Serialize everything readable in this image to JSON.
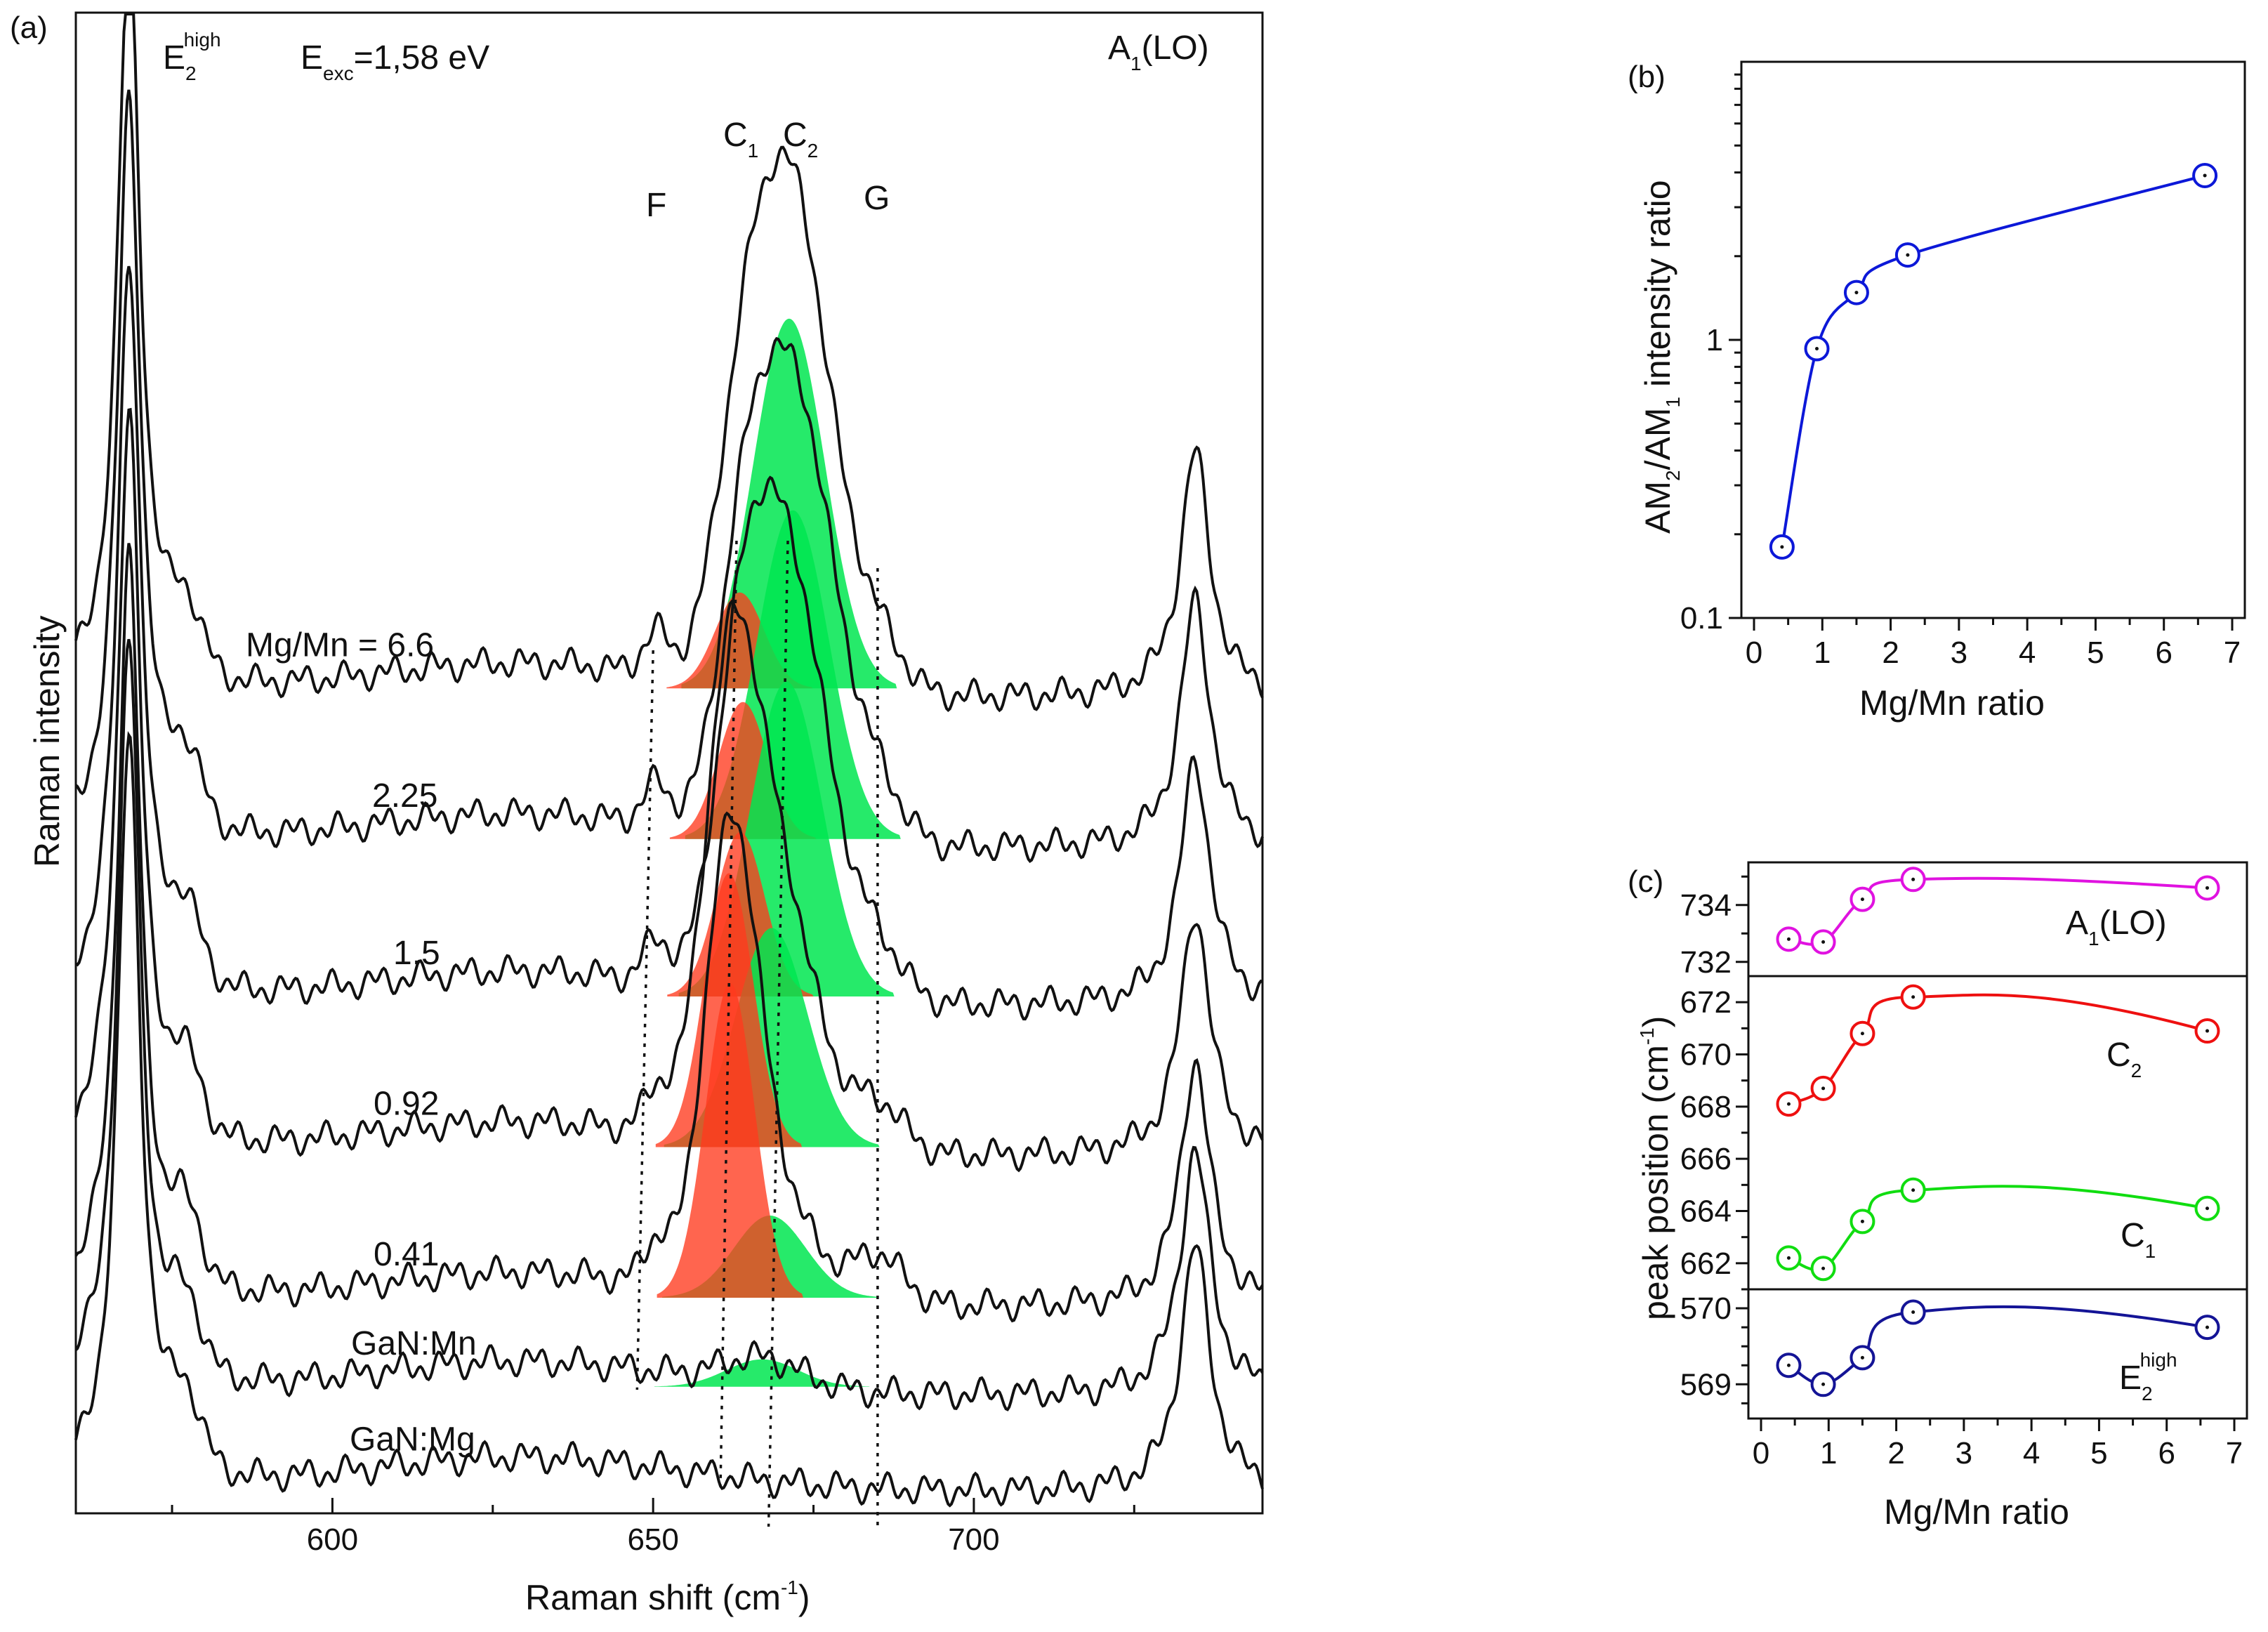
{
  "chart_data": [
    {
      "panel": "(a)",
      "type": "line",
      "title": "",
      "xlabel": "Raman shift (cm",
      "xlabel_sup": "-1",
      "xlabel_tail": ")",
      "ylabel": "Raman intensity",
      "xlim": [
        560,
        745
      ],
      "xticks": [
        "600",
        "650",
        "700"
      ],
      "excitation_label": "E",
      "excitation_sub": "exc",
      "excitation_value": "=1,58 eV",
      "peak_labels": {
        "e2": {
          "main": "E",
          "sub": "2",
          "sup": "high"
        },
        "a1": {
          "main": "A",
          "sub": "1",
          "tail": "(LO)"
        },
        "c1": {
          "main": "C",
          "sub": "1"
        },
        "c2": {
          "main": "C",
          "sub": "2"
        },
        "f": "F",
        "g": "G"
      },
      "reference_lines": {
        "F": 650,
        "C1": 663,
        "C2": 671,
        "G": 685
      },
      "spectra": [
        {
          "label": "Mg/Mn = 6.6",
          "baseline": 0.585,
          "c1": 663.5,
          "c1_amp": 0.1,
          "c2": 671.2,
          "c2_amp": 0.37,
          "fill_c1": 0.07,
          "fill_c2": 0.27
        },
        {
          "label": "2.25",
          "baseline": 0.475,
          "c1": 664.0,
          "c1_amp": 0.13,
          "c2": 671.8,
          "c2_amp": 0.33,
          "fill_c1": 0.1,
          "fill_c2": 0.24
        },
        {
          "label": "1.5",
          "baseline": 0.36,
          "c1": 663.6,
          "c1_amp": 0.15,
          "c2": 670.8,
          "c2_amp": 0.32,
          "fill_c1": 0.12,
          "fill_c2": 0.23
        },
        {
          "label": "0.92",
          "baseline": 0.25,
          "c1": 661.8,
          "c1_amp": 0.26,
          "c2": 668.5,
          "c2_amp": 0.21,
          "fill_c1": 0.2,
          "fill_c2": 0.16
        },
        {
          "label": "0.41",
          "baseline": 0.14,
          "c1": 662.0,
          "c1_amp": 0.3,
          "c2": 668.2,
          "c2_amp": 0.08,
          "fill_c1": 0.23,
          "fill_c2": 0.06
        },
        {
          "label": "GaN:Mn",
          "baseline": 0.075,
          "c1": 0,
          "c1_amp": 0,
          "c2": 667.0,
          "c2_amp": 0.02,
          "fill_c1": 0,
          "fill_c2": 0.02
        },
        {
          "label": "GaN:Mg",
          "baseline": 0.005,
          "c1": 0,
          "c1_amp": 0,
          "c2": 0,
          "c2_amp": 0,
          "fill_c1": 0,
          "fill_c2": 0
        }
      ],
      "colors": {
        "line": "#111111",
        "fill_c1": "#ff3a1e",
        "fill_c2": "#00e650"
      }
    },
    {
      "panel": "(b)",
      "type": "scatter",
      "xlabel": "Mg/Mn ratio",
      "ylabel_parts": {
        "a": "AM",
        "a_sub": "2",
        "b": "/AM",
        "b_sub": "1",
        "tail": " intensity ratio"
      },
      "yscale": "log",
      "xlim": [
        0,
        7
      ],
      "ylim": [
        0.1,
        10
      ],
      "xticks": [
        "0",
        "1",
        "2",
        "3",
        "4",
        "5",
        "6",
        "7"
      ],
      "yticks": [
        "0.1",
        "1"
      ],
      "x": [
        0.41,
        0.92,
        1.5,
        2.25,
        6.6
      ],
      "y": [
        0.18,
        0.93,
        1.48,
        2.02,
        3.9
      ],
      "color": "#0c18d8"
    },
    {
      "panel": "(c)",
      "type": "scatter",
      "xlabel": "Mg/Mn ratio",
      "ylabel": "peak position (cm",
      "ylabel_sup": "-1",
      "ylabel_tail": ")",
      "xlim": [
        0,
        7
      ],
      "xticks": [
        "0",
        "1",
        "2",
        "3",
        "4",
        "5",
        "6",
        "7"
      ],
      "series": [
        {
          "name": "A",
          "name_sub": "1",
          "name_tail": "(LO)",
          "color": "#e012e0",
          "ylim": [
            731.5,
            735.5
          ],
          "yticks": [
            "732",
            "734"
          ],
          "x": [
            0.41,
            0.92,
            1.5,
            2.25,
            6.6
          ],
          "y": [
            732.8,
            732.7,
            734.2,
            734.9,
            734.6
          ]
        },
        {
          "name": "C",
          "name_sub": "2",
          "color": "#ee1010",
          "ylim": [
            667,
            673
          ],
          "yticks": [
            "668",
            "670",
            "672"
          ],
          "x": [
            0.41,
            0.92,
            1.5,
            2.25,
            6.6
          ],
          "y": [
            668.1,
            668.7,
            670.8,
            672.2,
            670.9
          ]
        },
        {
          "name": "C",
          "name_sub": "1",
          "color": "#10dd10",
          "ylim": [
            661.0,
            666.5
          ],
          "yticks": [
            "662",
            "664",
            "666"
          ],
          "x": [
            0.41,
            0.92,
            1.5,
            2.25,
            6.6
          ],
          "y": [
            662.2,
            661.8,
            663.6,
            664.8,
            664.1
          ]
        },
        {
          "name": "E",
          "name_sub": "2",
          "name_sup": "high",
          "color": "#141496",
          "ylim": [
            568.6,
            570.25
          ],
          "yticks": [
            "569",
            "570"
          ],
          "x": [
            0.41,
            0.92,
            1.5,
            2.25,
            6.6
          ],
          "y": [
            569.25,
            569.0,
            569.35,
            569.95,
            569.75
          ]
        }
      ]
    }
  ]
}
